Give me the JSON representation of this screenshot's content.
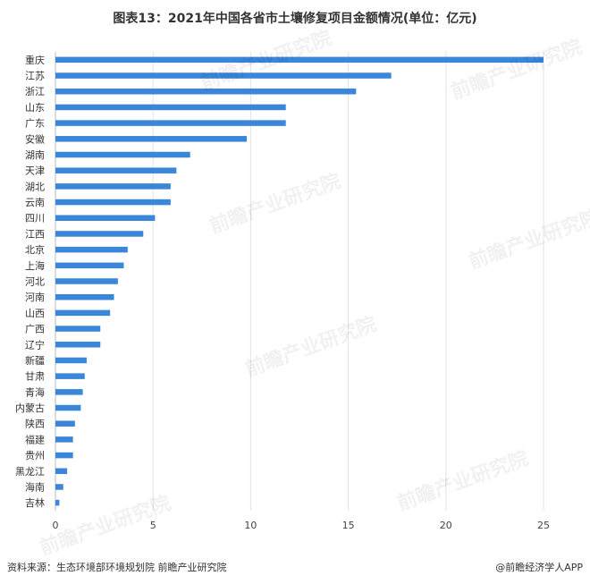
{
  "title": "图表13：2021年中国各省市土壤修复项目金额情况(单位：亿元)",
  "footer": {
    "source": "资料来源：生态环境部环境规划院 前瞻产业研究院",
    "brand": "@前瞻经济学人APP"
  },
  "watermark": "前瞻产业研究院",
  "colors": {
    "bar": "#3A86D9",
    "grid": "#E3E3E3",
    "axis": "#BBBBBB"
  },
  "chart_data": {
    "type": "bar",
    "orientation": "horizontal",
    "title": "图表13：2021年中国各省市土壤修复项目金额情况(单位：亿元)",
    "categories": [
      "重庆",
      "江苏",
      "浙江",
      "山东",
      "广东",
      "安徽",
      "湖南",
      "天津",
      "湖北",
      "云南",
      "四川",
      "江西",
      "北京",
      "上海",
      "河北",
      "河南",
      "山西",
      "广西",
      "辽宁",
      "新疆",
      "甘肃",
      "青海",
      "内蒙古",
      "陕西",
      "福建",
      "贵州",
      "黑龙江",
      "海南",
      "吉林"
    ],
    "values": [
      25.0,
      17.2,
      15.4,
      11.8,
      11.8,
      9.8,
      6.9,
      6.2,
      5.9,
      5.9,
      5.1,
      4.5,
      3.7,
      3.5,
      3.2,
      3.0,
      2.8,
      2.3,
      2.3,
      1.6,
      1.5,
      1.4,
      1.3,
      1.0,
      0.9,
      0.9,
      0.6,
      0.4,
      0.2
    ],
    "xlim": [
      0,
      25
    ],
    "xticks": [
      "0",
      "5",
      "10",
      "15",
      "20",
      "25"
    ],
    "grid": true,
    "legend": "none"
  }
}
